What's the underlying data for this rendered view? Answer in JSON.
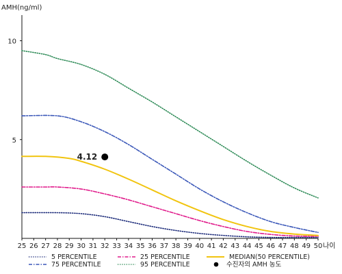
{
  "chart_data": {
    "type": "line",
    "ylabel": "AMH(ng/ml)",
    "xlabel": "나이",
    "x": [
      25,
      26,
      27,
      28,
      29,
      30,
      31,
      32,
      33,
      34,
      35,
      36,
      37,
      38,
      39,
      40,
      41,
      42,
      43,
      44,
      45,
      46,
      47,
      48,
      49,
      50
    ],
    "x_ticks": [
      "25",
      "26",
      "27",
      "28",
      "29",
      "30",
      "31",
      "32",
      "33",
      "34",
      "35",
      "36",
      "37",
      "38",
      "39",
      "40",
      "41",
      "42",
      "43",
      "44",
      "45",
      "46",
      "47",
      "48",
      "49",
      "50"
    ],
    "y_ticks": [
      "5",
      "10"
    ],
    "y_tick_values": [
      5,
      10
    ],
    "ylim": [
      0,
      11.3
    ],
    "xlim": [
      25,
      50
    ],
    "grid": false,
    "legend_position": "bottom",
    "series": [
      {
        "name": "5 PERCENTILE",
        "color": "#1c2b7a",
        "style": "dotted",
        "x": [
          25,
          28,
          30,
          32,
          34,
          36,
          38,
          40,
          42,
          44,
          46,
          48,
          50
        ],
        "values": [
          1.3,
          1.3,
          1.25,
          1.1,
          0.85,
          0.6,
          0.4,
          0.25,
          0.15,
          0.08,
          0.05,
          0.05,
          0.05
        ]
      },
      {
        "name": "25 PERCENTILE",
        "color": "#e0198a",
        "style": "dashdot",
        "x": [
          25,
          27,
          28,
          30,
          32,
          34,
          36,
          38,
          40,
          42,
          44,
          46,
          48,
          50
        ],
        "values": [
          2.6,
          2.6,
          2.6,
          2.5,
          2.25,
          1.95,
          1.6,
          1.25,
          0.9,
          0.6,
          0.35,
          0.2,
          0.12,
          0.1
        ]
      },
      {
        "name": "MEDIAN(50 PERCENTILE)",
        "color": "#f1c40f",
        "style": "solid",
        "x": [
          25,
          27,
          29,
          30,
          32,
          34,
          36,
          38,
          40,
          42,
          44,
          46,
          48,
          50
        ],
        "values": [
          4.15,
          4.15,
          4.05,
          3.9,
          3.5,
          3.0,
          2.45,
          1.9,
          1.4,
          0.95,
          0.6,
          0.35,
          0.22,
          0.15
        ]
      },
      {
        "name": "75 PERCENTILE",
        "color": "#3a57b8",
        "style": "dashdot",
        "x": [
          25,
          28,
          30,
          32,
          34,
          36,
          38,
          40,
          42,
          44,
          46,
          48,
          50
        ],
        "values": [
          6.2,
          6.2,
          5.9,
          5.4,
          4.75,
          4.0,
          3.25,
          2.5,
          1.85,
          1.3,
          0.85,
          0.55,
          0.3
        ]
      },
      {
        "name": "95 PERCENTILE",
        "color": "#2e8b57",
        "style": "dotted",
        "x": [
          25,
          27,
          28,
          30,
          32,
          34,
          36,
          38,
          40,
          42,
          44,
          46,
          48,
          50
        ],
        "values": [
          9.5,
          9.3,
          9.1,
          8.8,
          8.3,
          7.6,
          6.9,
          6.15,
          5.4,
          4.65,
          3.9,
          3.2,
          2.55,
          2.05
        ]
      }
    ],
    "point": {
      "name": "수진자의 AMH 농도",
      "x": 32,
      "y": 4.12,
      "label": "4.12"
    }
  }
}
